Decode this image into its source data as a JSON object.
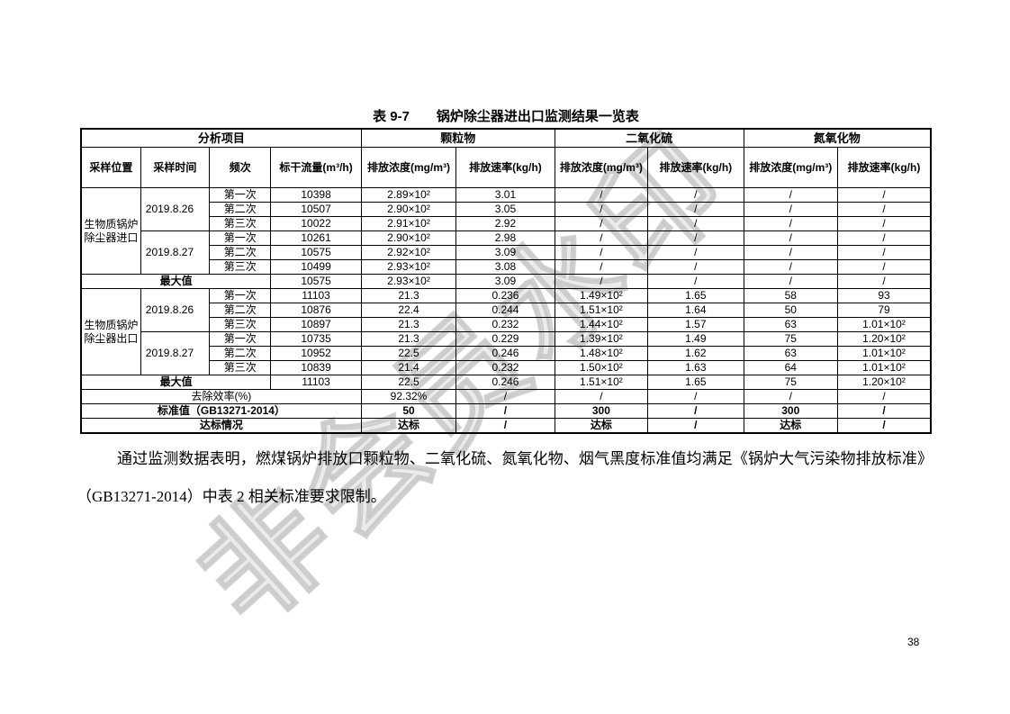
{
  "watermark": "非会员水印",
  "table": {
    "title": "表 9-7　　锅炉除尘器进出口监测结果一览表",
    "group_headers": [
      "分析项目",
      "颗粒物",
      "二氧化硫",
      "氮氧化物"
    ],
    "col_headers": [
      "采样位置",
      "采样时间",
      "频次",
      "标干流量(m³/h)",
      "排放浓度(mg/m³)",
      "排放速率(kg/h)",
      "排放浓度(mg/m³)",
      "排放速率(kg/h)",
      "排放浓度(mg/m³)",
      "排放速率(kg/h)"
    ],
    "rows": [
      [
        {
          "t": "生物质锅炉除尘器进口",
          "rs": 6
        },
        {
          "t": "2019.8.26",
          "rs": 3,
          "cls": "tl"
        },
        {
          "t": "第一次"
        },
        {
          "t": "10398"
        },
        {
          "t": "2.89×10²"
        },
        {
          "t": "3.01"
        },
        {
          "t": "/"
        },
        {
          "t": "/"
        },
        {
          "t": "/"
        },
        {
          "t": "/"
        }
      ],
      [
        {
          "t": "第二次"
        },
        {
          "t": "10507"
        },
        {
          "t": "2.90×10²"
        },
        {
          "t": "3.05"
        },
        {
          "t": "/"
        },
        {
          "t": "/"
        },
        {
          "t": "/"
        },
        {
          "t": "/"
        }
      ],
      [
        {
          "t": "第三次"
        },
        {
          "t": "10022"
        },
        {
          "t": "2.91×10²"
        },
        {
          "t": "2.92"
        },
        {
          "t": "/"
        },
        {
          "t": "/"
        },
        {
          "t": "/"
        },
        {
          "t": "/"
        }
      ],
      [
        {
          "t": "2019.8.27",
          "rs": 3,
          "cls": "tl"
        },
        {
          "t": "第一次"
        },
        {
          "t": "10261"
        },
        {
          "t": "2.90×10²"
        },
        {
          "t": "2.98"
        },
        {
          "t": "/"
        },
        {
          "t": "/"
        },
        {
          "t": "/"
        },
        {
          "t": "/"
        }
      ],
      [
        {
          "t": "第二次"
        },
        {
          "t": "10575"
        },
        {
          "t": "2.92×10²"
        },
        {
          "t": "3.09"
        },
        {
          "t": "/"
        },
        {
          "t": "/"
        },
        {
          "t": "/"
        },
        {
          "t": "/"
        }
      ],
      [
        {
          "t": "第三次"
        },
        {
          "t": "10499"
        },
        {
          "t": "2.93×10²"
        },
        {
          "t": "3.08"
        },
        {
          "t": "/"
        },
        {
          "t": "/"
        },
        {
          "t": "/"
        },
        {
          "t": "/"
        }
      ],
      [
        {
          "t": "最大值",
          "cs": 3,
          "b": 1
        },
        {
          "t": "10575"
        },
        {
          "t": "2.93×10²"
        },
        {
          "t": "3.09"
        },
        {
          "t": "/"
        },
        {
          "t": "/"
        },
        {
          "t": "/"
        },
        {
          "t": "/"
        }
      ],
      [
        {
          "t": "生物质锅炉除尘器出口",
          "rs": 6
        },
        {
          "t": "2019.8.26",
          "rs": 3,
          "cls": "tl"
        },
        {
          "t": "第一次"
        },
        {
          "t": "11103"
        },
        {
          "t": "21.3"
        },
        {
          "t": "0.236"
        },
        {
          "t": "1.49×10²"
        },
        {
          "t": "1.65"
        },
        {
          "t": "58"
        },
        {
          "t": "93"
        }
      ],
      [
        {
          "t": "第二次"
        },
        {
          "t": "10876"
        },
        {
          "t": "22.4"
        },
        {
          "t": "0.244"
        },
        {
          "t": "1.51×10²"
        },
        {
          "t": "1.64"
        },
        {
          "t": "50"
        },
        {
          "t": "79"
        }
      ],
      [
        {
          "t": "第三次"
        },
        {
          "t": "10897"
        },
        {
          "t": "21.3"
        },
        {
          "t": "0.232"
        },
        {
          "t": "1.44×10²"
        },
        {
          "t": "1.57"
        },
        {
          "t": "63"
        },
        {
          "t": "1.01×10²"
        }
      ],
      [
        {
          "t": "2019.8.27",
          "rs": 3,
          "cls": "tl"
        },
        {
          "t": "第一次"
        },
        {
          "t": "10735"
        },
        {
          "t": "21.3"
        },
        {
          "t": "0.229"
        },
        {
          "t": "1.39×10²"
        },
        {
          "t": "1.49"
        },
        {
          "t": "75"
        },
        {
          "t": "1.20×10²"
        }
      ],
      [
        {
          "t": "第二次"
        },
        {
          "t": "10952"
        },
        {
          "t": "22.5"
        },
        {
          "t": "0.246"
        },
        {
          "t": "1.48×10²"
        },
        {
          "t": "1.62"
        },
        {
          "t": "63"
        },
        {
          "t": "1.01×10²"
        }
      ],
      [
        {
          "t": "第三次"
        },
        {
          "t": "10839"
        },
        {
          "t": "21.4"
        },
        {
          "t": "0.232"
        },
        {
          "t": "1.50×10²"
        },
        {
          "t": "1.63"
        },
        {
          "t": "64"
        },
        {
          "t": "1.01×10²"
        }
      ],
      [
        {
          "t": "最大值",
          "cs": 3,
          "b": 1
        },
        {
          "t": "11103"
        },
        {
          "t": "22.5"
        },
        {
          "t": "0.246"
        },
        {
          "t": "1.51×10²"
        },
        {
          "t": "1.65"
        },
        {
          "t": "75"
        },
        {
          "t": "1.20×10²"
        }
      ],
      [
        {
          "t": "去除效率(%)",
          "cs": 4
        },
        {
          "t": "92.32%"
        },
        {
          "t": "/"
        },
        {
          "t": "/"
        },
        {
          "t": "/"
        },
        {
          "t": "/"
        },
        {
          "t": "/"
        }
      ],
      [
        {
          "t": "标准值（GB13271-2014）",
          "cs": 4,
          "b": 1
        },
        {
          "t": "50",
          "b": 1
        },
        {
          "t": "/",
          "b": 1
        },
        {
          "t": "300",
          "b": 1
        },
        {
          "t": "/",
          "b": 1
        },
        {
          "t": "300",
          "b": 1
        },
        {
          "t": "/",
          "b": 1
        }
      ],
      [
        {
          "t": "达标情况",
          "cs": 4,
          "b": 1
        },
        {
          "t": "达标",
          "b": 1
        },
        {
          "t": "/",
          "b": 1
        },
        {
          "t": "达标",
          "b": 1
        },
        {
          "t": "/",
          "b": 1
        },
        {
          "t": "达标",
          "b": 1
        },
        {
          "t": "/",
          "b": 1
        }
      ]
    ]
  },
  "paragraph": "通过监测数据表明，燃煤锅炉排放口颗粒物、二氧化硫、氮氧化物、烟气黑度标准值均满足《锅炉大气污染物排放标准》（GB13271-2014）中表 2 相关标准要求限制。",
  "page_number": "38"
}
